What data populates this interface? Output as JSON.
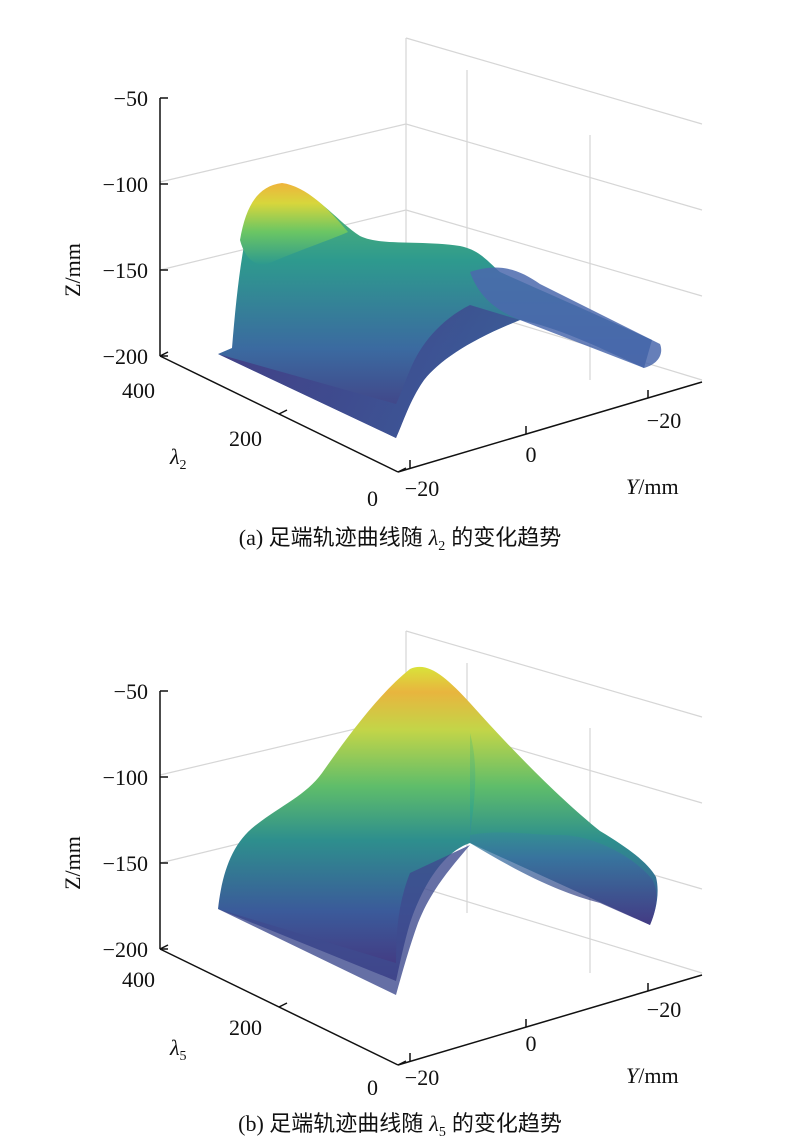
{
  "chart_data": [
    {
      "type": "surface",
      "panel": "a",
      "caption_prefix": "(a) 足端轨迹曲线随",
      "caption_sym": "λ",
      "caption_sub": "2",
      "caption_suffix": "的变化趋势",
      "zlabel": "Z/mm",
      "ylabel_sym": "Y",
      "ylabel_unit": "/mm",
      "xlabel_sym": "λ",
      "xlabel_sub": "2",
      "z_ticks": [
        "−50",
        "−100",
        "−150",
        "−200"
      ],
      "z_tick_values": [
        -50,
        -100,
        -150,
        -200
      ],
      "y_ticks": [
        "−20",
        "0",
        "−20"
      ],
      "lambda_ticks": [
        "400",
        "200",
        "0"
      ],
      "lambda_tick_values": [
        400,
        200,
        0
      ],
      "zlim": [
        -200,
        -50
      ],
      "lambda_range": [
        0,
        400
      ],
      "peak_z_at_lambda_max": -100,
      "peak_z_at_lambda_min": -175,
      "base_z": -200,
      "grid": true,
      "colormap": [
        "#45337d",
        "#3b5a9a",
        "#2e7d93",
        "#2ea48a",
        "#6bc663",
        "#c7d83a",
        "#f0c53a",
        "#e8a03c"
      ]
    },
    {
      "type": "surface",
      "panel": "b",
      "caption_prefix": "(b) 足端轨迹曲线随",
      "caption_sym": "λ",
      "caption_sub": "5",
      "caption_suffix": "的变化趋势",
      "zlabel": "Z/mm",
      "ylabel_sym": "Y",
      "ylabel_unit": "/mm",
      "xlabel_sym": "λ",
      "xlabel_sub": "5",
      "z_ticks": [
        "−50",
        "−100",
        "−150",
        "−200"
      ],
      "z_tick_values": [
        -50,
        -100,
        -150,
        -200
      ],
      "y_ticks": [
        "−20",
        "0",
        "−20"
      ],
      "lambda_ticks": [
        "400",
        "200",
        "0"
      ],
      "lambda_tick_values": [
        400,
        200,
        0
      ],
      "zlim": [
        -200,
        -50
      ],
      "lambda_range": [
        0,
        400
      ],
      "peak_z_at_lambda_max": -138,
      "peak_z_at_lambda_min": -45,
      "base_z": -200,
      "grid": true,
      "colormap": [
        "#45337d",
        "#3b5a9a",
        "#2e7d93",
        "#2ea48a",
        "#6bc663",
        "#c7d83a",
        "#f0c53a",
        "#e8a03c"
      ]
    }
  ]
}
